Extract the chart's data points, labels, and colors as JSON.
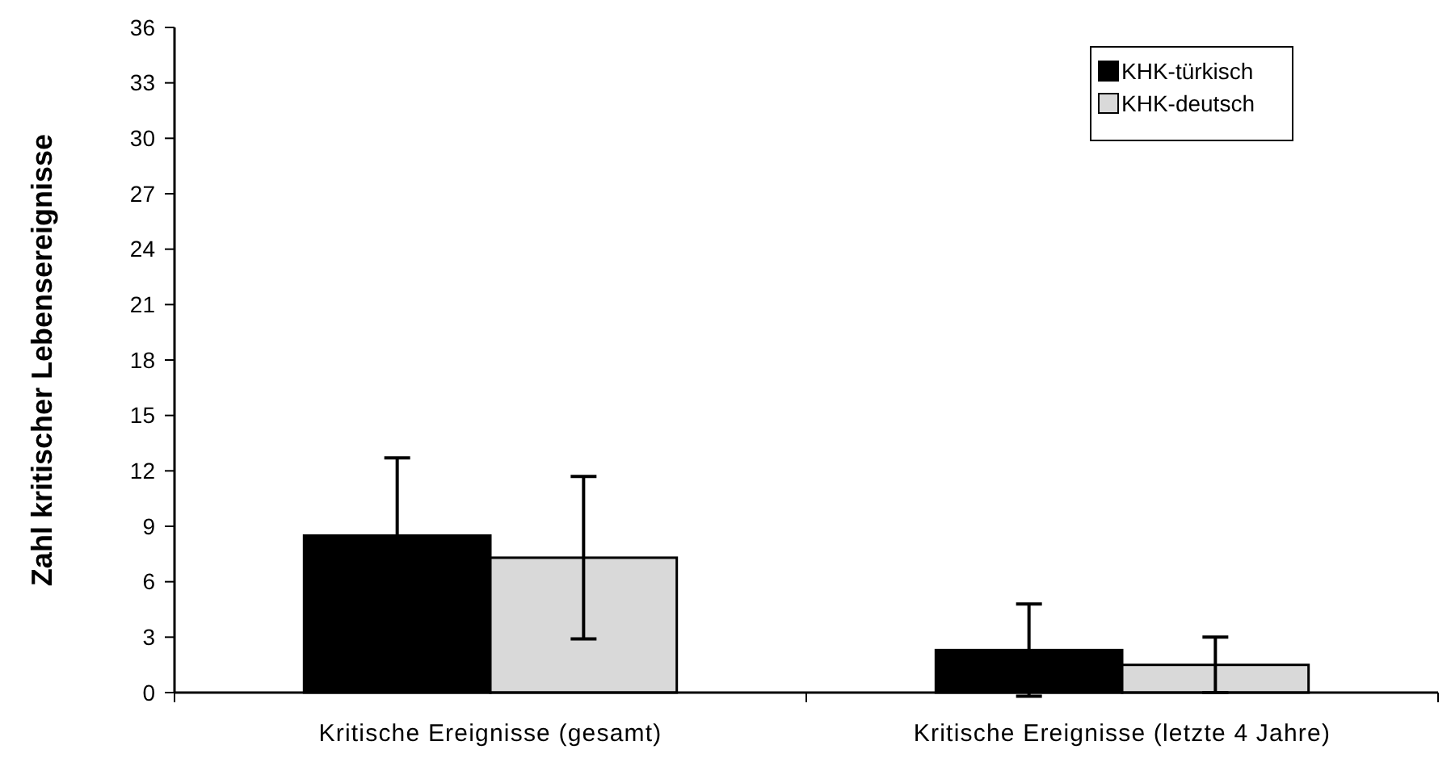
{
  "chart_data": {
    "type": "bar",
    "ylabel": "Zahl kritischer Lebensereignisse",
    "categories": [
      "Kritische Ereignisse (gesamt)",
      "Kritische Ereignisse (letzte 4 Jahre)"
    ],
    "series": [
      {
        "name": "KHK-türkisch",
        "color": "#000000",
        "values": [
          8.5,
          2.3
        ],
        "errors": [
          4.2,
          2.5
        ]
      },
      {
        "name": "KHK-deutsch",
        "color": "#d9d9d9",
        "values": [
          7.3,
          1.5
        ],
        "errors": [
          4.4,
          1.5
        ]
      }
    ],
    "ylim": [
      0,
      36
    ],
    "yticks": [
      0,
      3,
      6,
      9,
      12,
      15,
      18,
      21,
      24,
      27,
      30,
      33,
      36
    ],
    "grid": false,
    "legend": "top right"
  }
}
